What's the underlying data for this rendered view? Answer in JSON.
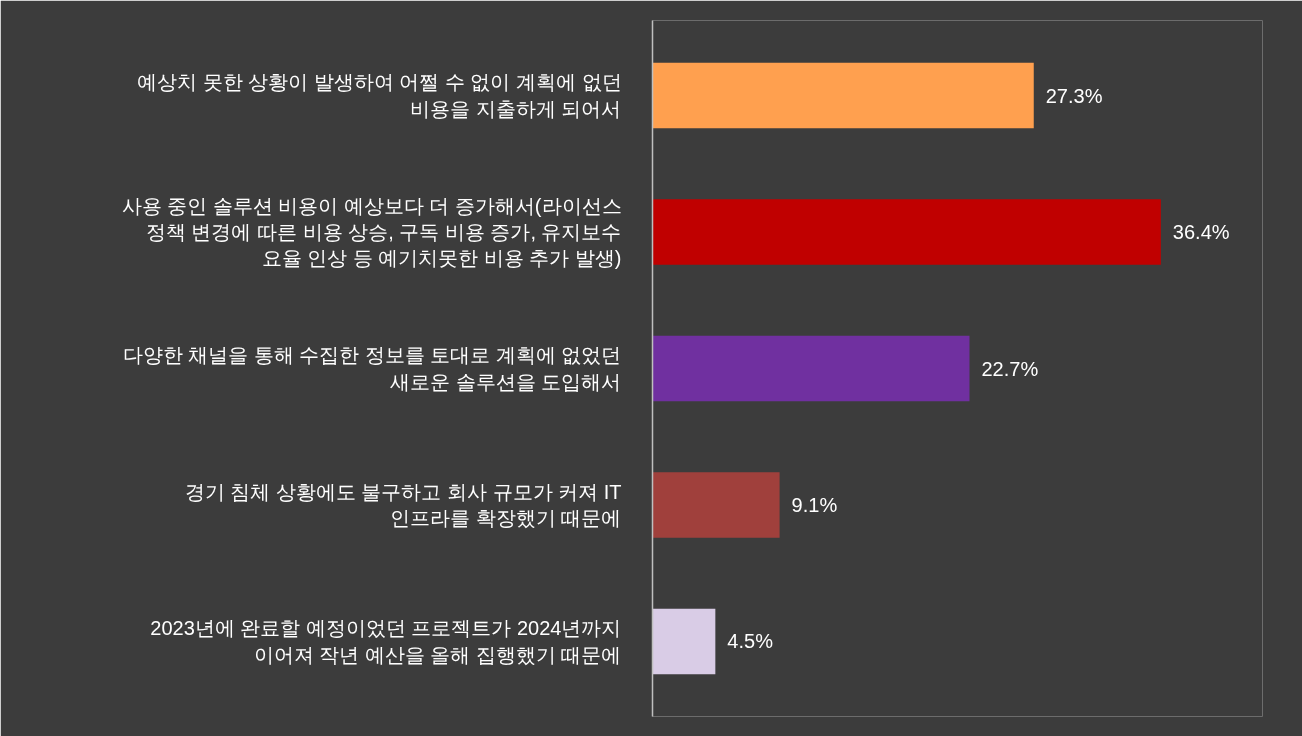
{
  "chart_data": {
    "type": "bar",
    "orientation": "horizontal",
    "data_labels": true,
    "grid": false,
    "categories": [
      "예상치 못한 상황이 발생하여 어쩔 수 없이 계획에 없던\n비용을 지출하게 되어서",
      "사용 중인 솔루션 비용이 예상보다 더 증가해서(라이선스\n정책 변경에 따른 비용 상승, 구독 비용 증가, 유지보수\n요율 인상 등 예기치못한 비용 추가 발생)",
      "다양한 채널을 통해 수집한 정보를 토대로 계획에 없었던\n새로운 솔루션을 도입해서",
      "경기 침체 상황에도 불구하고 회사 규모가 커져 IT\n인프라를 확장했기 때문에",
      "2023년에 완료할 예정이었던 프로젝트가 2024년까지\n이어져 작년 예산을 올해 집행했기 때문에"
    ],
    "values": [
      27.3,
      36.4,
      22.7,
      9.1,
      4.5
    ],
    "value_labels": [
      "27.3%",
      "36.4%",
      "22.7%",
      "9.1%",
      "4.5%"
    ],
    "colors": [
      "#ffa04f",
      "#c00000",
      "#7030a0",
      "#a0403c",
      "#d9cce6"
    ]
  }
}
